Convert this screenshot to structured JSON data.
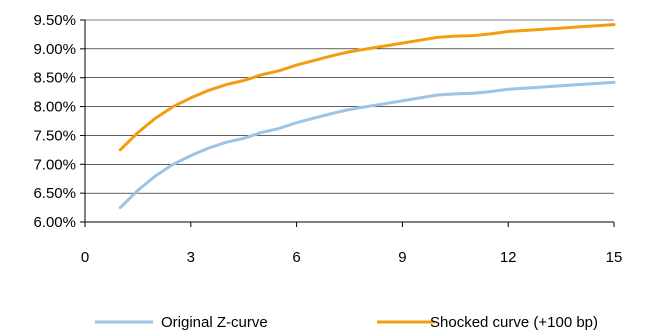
{
  "chart_data": {
    "type": "line",
    "title": "",
    "xlabel": "",
    "ylabel": "",
    "xlim": [
      0,
      15
    ],
    "ylim": [
      0.06,
      0.095
    ],
    "xticks": [
      0,
      3,
      6,
      9,
      12,
      15
    ],
    "xtick_labels": [
      "0",
      "3",
      "6",
      "9",
      "12",
      "15"
    ],
    "yticks": [
      0.06,
      0.065,
      0.07,
      0.075,
      0.08,
      0.085,
      0.09,
      0.095
    ],
    "ytick_labels": [
      "6.00%",
      "6.50%",
      "7.00%",
      "7.50%",
      "8.00%",
      "8.50%",
      "9.00%",
      "9.50%"
    ],
    "grid": {
      "horizontal": true,
      "vertical": false
    },
    "legend_position": "bottom",
    "series": [
      {
        "name": "Original Z-curve",
        "color": "#9DC3E6",
        "x": [
          1,
          1.5,
          2,
          2.5,
          3,
          3.5,
          4,
          4.5,
          5,
          5.5,
          6,
          6.5,
          7,
          7.5,
          8,
          8.5,
          9,
          9.5,
          10,
          10.5,
          11,
          11.5,
          12,
          12.5,
          13,
          13.5,
          14,
          14.5,
          15
        ],
        "y": [
          0.0625,
          0.0655,
          0.068,
          0.07,
          0.0715,
          0.0728,
          0.0738,
          0.0745,
          0.0755,
          0.0762,
          0.0772,
          0.078,
          0.0788,
          0.0795,
          0.08,
          0.0805,
          0.081,
          0.0815,
          0.082,
          0.0822,
          0.0823,
          0.0826,
          0.083,
          0.0832,
          0.0834,
          0.0836,
          0.0838,
          0.084,
          0.0842
        ]
      },
      {
        "name": "Shocked curve (+100 bp)",
        "color": "#F39C12",
        "x": [
          1,
          1.5,
          2,
          2.5,
          3,
          3.5,
          4,
          4.5,
          5,
          5.5,
          6,
          6.5,
          7,
          7.5,
          8,
          8.5,
          9,
          9.5,
          10,
          10.5,
          11,
          11.5,
          12,
          12.5,
          13,
          13.5,
          14,
          14.5,
          15
        ],
        "y": [
          0.0725,
          0.0755,
          0.078,
          0.08,
          0.0815,
          0.0828,
          0.0838,
          0.0845,
          0.0855,
          0.0862,
          0.0872,
          0.088,
          0.0888,
          0.0895,
          0.09,
          0.0905,
          0.091,
          0.0915,
          0.092,
          0.0922,
          0.0923,
          0.0926,
          0.093,
          0.0932,
          0.0934,
          0.0936,
          0.0938,
          0.094,
          0.0942
        ]
      }
    ]
  }
}
